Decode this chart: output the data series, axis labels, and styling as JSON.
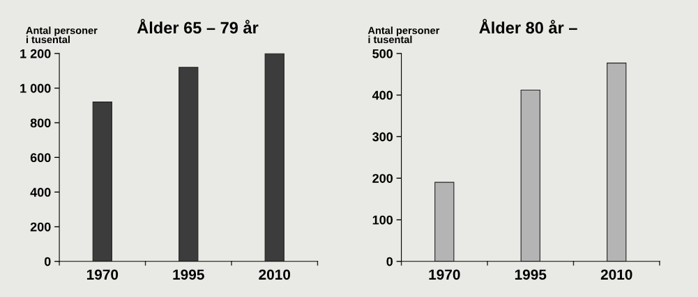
{
  "chart_data": [
    {
      "type": "bar",
      "title": "Ålder 65 – 79 år",
      "ylabel": "Antal personer\ni tusental",
      "categories": [
        "1970",
        "1995",
        "2010"
      ],
      "series": [
        {
          "color": "#3c3c3c",
          "values": [
            920,
            1120,
            1200
          ]
        }
      ],
      "ylim": [
        0,
        1200
      ],
      "yticks": [
        0,
        {
          "value": 200,
          "label": "200"
        },
        {
          "value": 400,
          "label": "400"
        },
        {
          "value": 600,
          "label": "600"
        },
        {
          "value": 800,
          "label": "800"
        },
        {
          "value": 1000,
          "label": "1 000"
        },
        {
          "value": 1200,
          "label": "1 200"
        }
      ],
      "grid": false
    },
    {
      "type": "bar",
      "title": "Ålder 80 år –",
      "ylabel": "Antal personer\ni tusental",
      "categories": [
        "1970",
        "1995",
        "2010"
      ],
      "series": [
        {
          "color": "#b4b4b4",
          "values": [
            190,
            412,
            477
          ]
        }
      ],
      "ylim": [
        0,
        500
      ],
      "yticks": [
        0,
        100,
        200,
        300,
        400,
        500
      ],
      "grid": false
    }
  ]
}
